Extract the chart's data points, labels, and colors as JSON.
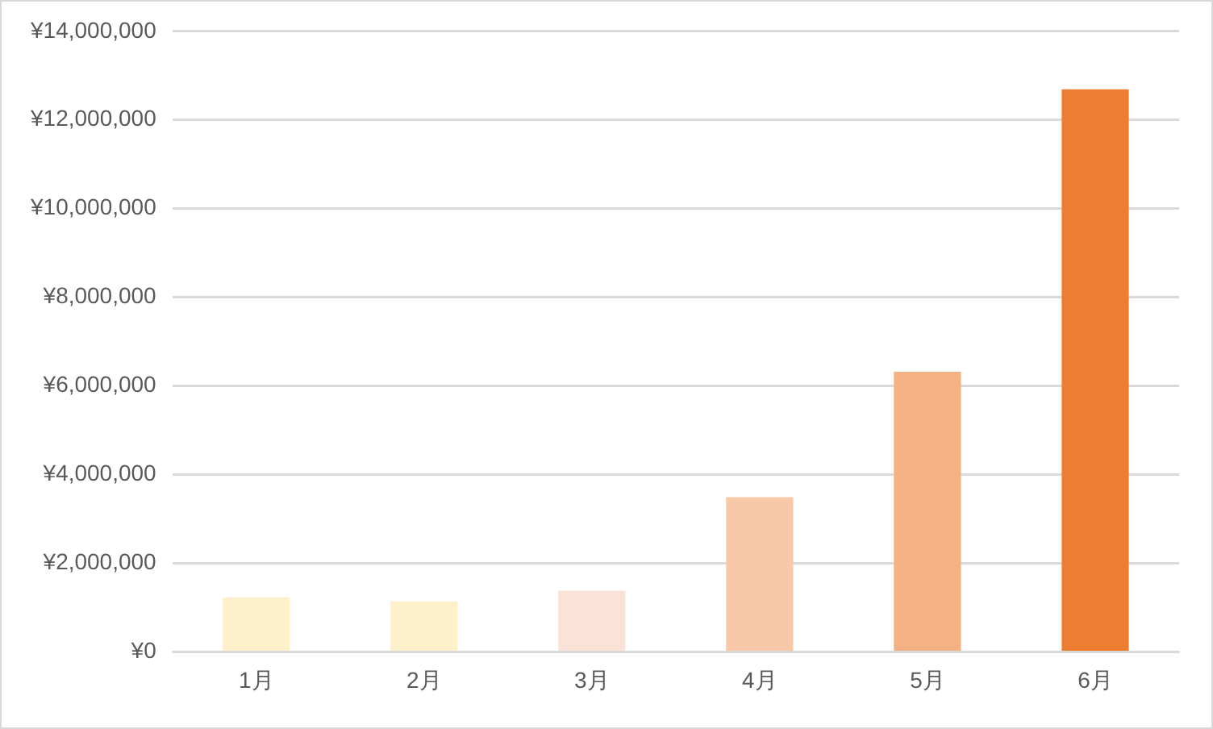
{
  "chart_data": {
    "type": "bar",
    "categories": [
      "1月",
      "2月",
      "3月",
      "4月",
      "5月",
      "6月"
    ],
    "values": [
      1230000,
      1140000,
      1380000,
      3490000,
      6320000,
      12690000
    ],
    "colors": [
      "#fff0cc",
      "#fff0cc",
      "#fae3d6",
      "#f7c9a8",
      "#f4b183",
      "#ed7d31"
    ],
    "ylim": [
      0,
      14000000
    ],
    "yticks": [
      {
        "value": 0,
        "label": "¥0"
      },
      {
        "value": 2000000,
        "label": "¥2,000,000"
      },
      {
        "value": 4000000,
        "label": "¥4,000,000"
      },
      {
        "value": 6000000,
        "label": "¥6,000,000"
      },
      {
        "value": 8000000,
        "label": "¥8,000,000"
      },
      {
        "value": 10000000,
        "label": "¥10,000,000"
      },
      {
        "value": 12000000,
        "label": "¥12,000,000"
      },
      {
        "value": 14000000,
        "label": "¥14,000,000"
      }
    ],
    "grid": "y"
  }
}
